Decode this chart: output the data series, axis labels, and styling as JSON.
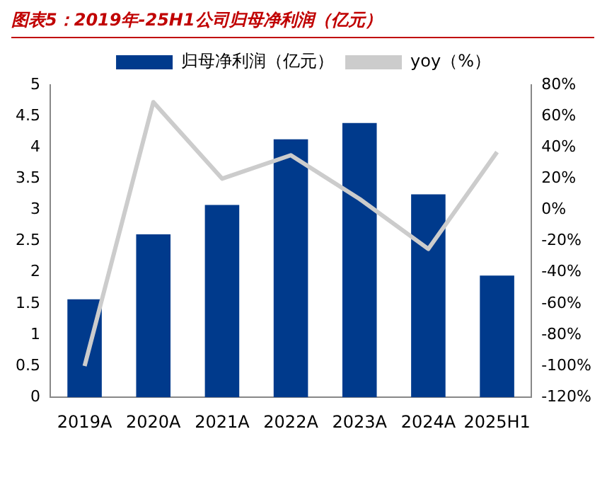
{
  "chart_data": {
    "type": "bar",
    "title": "图表5：2019年-25H1公司归母净利润（亿元）",
    "categories": [
      "2019A",
      "2020A",
      "2021A",
      "2022A",
      "2023A",
      "2024A",
      "2025H1"
    ],
    "series": [
      {
        "name": "归母净利润（亿元）",
        "color": "#003a8c",
        "values": [
          1.57,
          2.61,
          3.08,
          4.13,
          4.39,
          3.25,
          1.95
        ]
      },
      {
        "name": "yoy（%）",
        "type": "line",
        "axis": "y2",
        "color": "#cccccc",
        "values": [
          -100,
          69,
          20,
          35,
          7,
          -25,
          37
        ]
      }
    ],
    "ylim": [
      0,
      5
    ],
    "yticks": [
      0,
      0.5,
      1,
      1.5,
      2,
      2.5,
      3,
      3.5,
      4,
      4.5,
      5
    ],
    "y2lim": [
      -120,
      80
    ],
    "y2ticks": [
      {
        "value": -120,
        "label": "-120%"
      },
      {
        "value": -100,
        "label": "-100%"
      },
      {
        "value": -80,
        "label": "-80%"
      },
      {
        "value": -60,
        "label": "-60%"
      },
      {
        "value": -40,
        "label": "-40%"
      },
      {
        "value": -20,
        "label": "-20%"
      },
      {
        "value": 0,
        "label": "0%"
      },
      {
        "value": 20,
        "label": "20%"
      },
      {
        "value": 40,
        "label": "40%"
      },
      {
        "value": 60,
        "label": "60%"
      },
      {
        "value": 80,
        "label": "80%"
      }
    ],
    "grid": false,
    "legend": "top",
    "marker": "none",
    "line_style": "solid"
  }
}
